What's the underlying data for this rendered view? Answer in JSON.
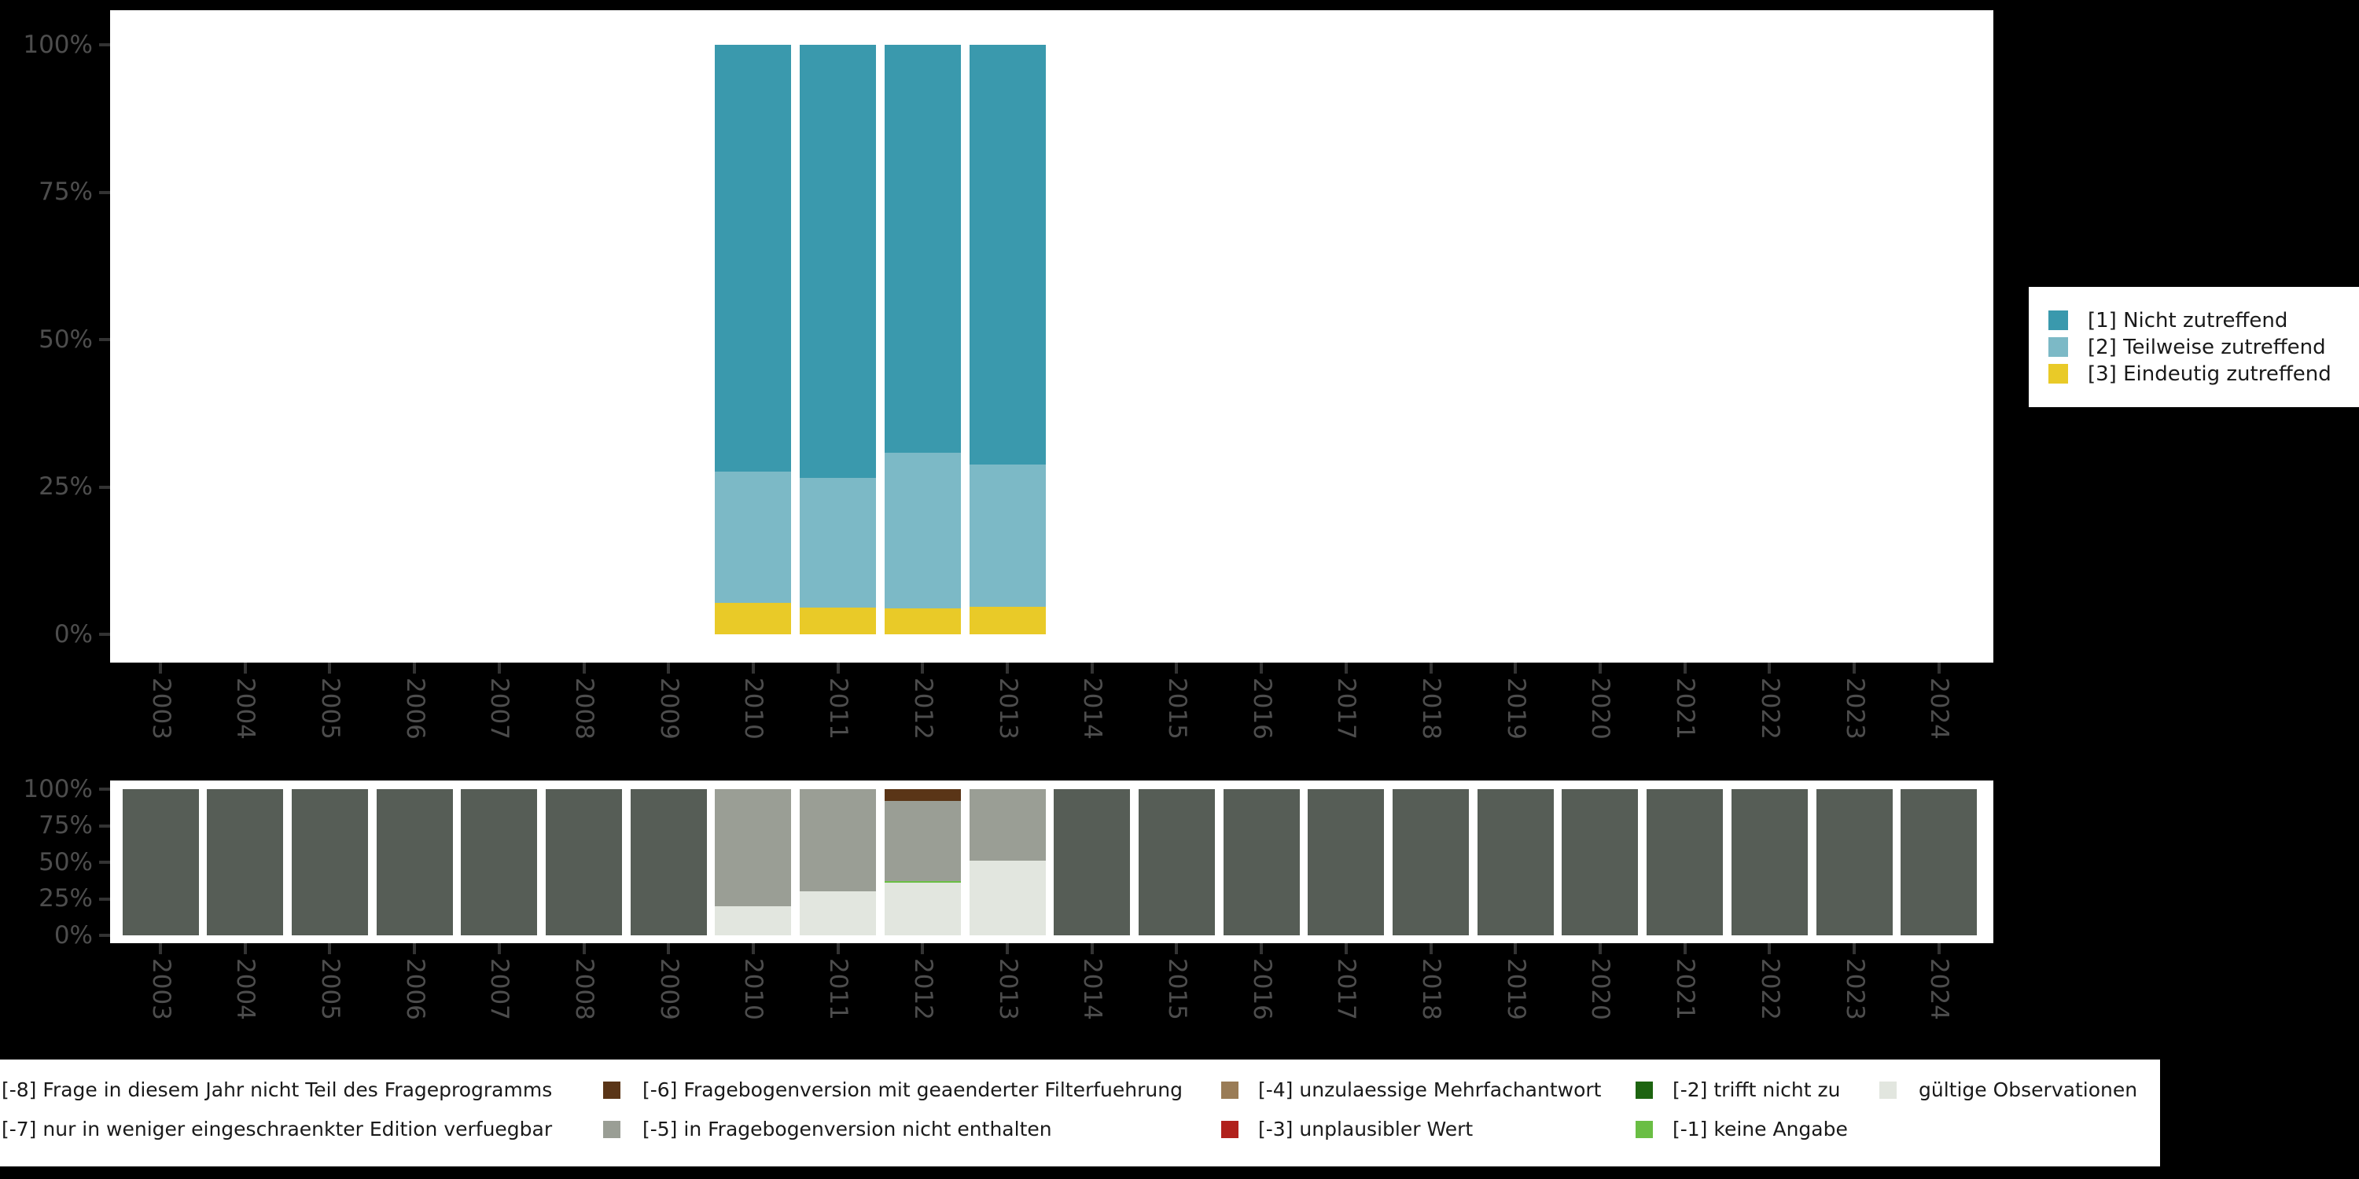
{
  "figure": {
    "background": "#000000",
    "plot_background": "#ffffff",
    "axis_tick_color": "#333333",
    "axis_label_color": "#4d4d4d",
    "legend_text_color": "#1a1a1a"
  },
  "years": [
    "2003",
    "2004",
    "2005",
    "2006",
    "2007",
    "2008",
    "2009",
    "2010",
    "2011",
    "2012",
    "2013",
    "2014",
    "2015",
    "2016",
    "2017",
    "2018",
    "2019",
    "2020",
    "2021",
    "2022",
    "2023",
    "2024"
  ],
  "palette": {
    "[1]": "#3a99ad",
    "[2]": "#7cb9c6",
    "[3]": "#e9ca28",
    "[-8]": "#565d56",
    "[-7]": "#868e86",
    "[-6]": "#5a3517",
    "[-5]": "#9a9e95",
    "[-4]": "#9a7c56",
    "[-3]": "#b1211c",
    "[-2]": "#1d6410",
    "[-1]": "#6abe44",
    "valid": "#e2e6df"
  },
  "chart_data": [
    {
      "id": "answers",
      "type": "bar",
      "stacked": true,
      "ylim": [
        0,
        100
      ],
      "yticks": [
        "100%",
        "75%",
        "50%",
        "25%",
        "0%"
      ],
      "grid": false,
      "legend_position": "right",
      "legend": [
        {
          "code": "[1]",
          "label": "[1] Nicht zutreffend"
        },
        {
          "code": "[2]",
          "label": "[2] Teilweise zutreffend"
        },
        {
          "code": "[3]",
          "label": "[3] Eindeutig zutreffend"
        }
      ],
      "bars": [
        {
          "year": "2010",
          "segments": [
            {
              "code": "[3]",
              "value": 5.4
            },
            {
              "code": "[2]",
              "value": 22.2
            },
            {
              "code": "[1]",
              "value": 72.4
            }
          ]
        },
        {
          "year": "2011",
          "segments": [
            {
              "code": "[3]",
              "value": 4.6
            },
            {
              "code": "[2]",
              "value": 21.9
            },
            {
              "code": "[1]",
              "value": 73.5
            }
          ]
        },
        {
          "year": "2012",
          "segments": [
            {
              "code": "[3]",
              "value": 4.4
            },
            {
              "code": "[2]",
              "value": 26.4
            },
            {
              "code": "[1]",
              "value": 69.2
            }
          ]
        },
        {
          "year": "2013",
          "segments": [
            {
              "code": "[3]",
              "value": 4.7
            },
            {
              "code": "[2]",
              "value": 24.1
            },
            {
              "code": "[1]",
              "value": 71.2
            }
          ]
        }
      ]
    },
    {
      "id": "missings",
      "type": "bar",
      "stacked": true,
      "ylim": [
        0,
        100
      ],
      "yticks": [
        "100%",
        "75%",
        "50%",
        "25%",
        "0%"
      ],
      "grid": false,
      "legend_position": "bottom",
      "legend": [
        {
          "code": "[-8]",
          "label": "[-8] Frage in diesem Jahr nicht Teil des Frageprogramms",
          "row": 0,
          "col": 0
        },
        {
          "code": "[-7]",
          "label": "[-7] nur in weniger eingeschraenkter Edition verfuegbar",
          "row": 1,
          "col": 0
        },
        {
          "code": "[-6]",
          "label": "[-6] Fragebogenversion mit geaenderter Filterfuehrung",
          "row": 0,
          "col": 1
        },
        {
          "code": "[-5]",
          "label": "[-5] in Fragebogenversion nicht enthalten",
          "row": 1,
          "col": 1
        },
        {
          "code": "[-4]",
          "label": "[-4] unzulaessige Mehrfachantwort",
          "row": 0,
          "col": 2
        },
        {
          "code": "[-3]",
          "label": "[-3] unplausibler Wert",
          "row": 1,
          "col": 2
        },
        {
          "code": "[-2]",
          "label": "[-2] trifft nicht zu",
          "row": 0,
          "col": 3
        },
        {
          "code": "[-1]",
          "label": "[-1] keine Angabe",
          "row": 1,
          "col": 3
        },
        {
          "code": "valid",
          "label": "gültige Observationen",
          "row": 0,
          "col": 4
        }
      ],
      "bars": [
        {
          "year": "2003",
          "segments": [
            {
              "code": "[-8]",
              "value": 100
            }
          ]
        },
        {
          "year": "2004",
          "segments": [
            {
              "code": "[-8]",
              "value": 100
            }
          ]
        },
        {
          "year": "2005",
          "segments": [
            {
              "code": "[-8]",
              "value": 100
            }
          ]
        },
        {
          "year": "2006",
          "segments": [
            {
              "code": "[-8]",
              "value": 100
            }
          ]
        },
        {
          "year": "2007",
          "segments": [
            {
              "code": "[-8]",
              "value": 100
            }
          ]
        },
        {
          "year": "2008",
          "segments": [
            {
              "code": "[-8]",
              "value": 100
            }
          ]
        },
        {
          "year": "2009",
          "segments": [
            {
              "code": "[-8]",
              "value": 100
            }
          ]
        },
        {
          "year": "2010",
          "segments": [
            {
              "code": "valid",
              "value": 20
            },
            {
              "code": "[-5]",
              "value": 80
            }
          ]
        },
        {
          "year": "2011",
          "segments": [
            {
              "code": "valid",
              "value": 30
            },
            {
              "code": "[-5]",
              "value": 70
            }
          ]
        },
        {
          "year": "2012",
          "segments": [
            {
              "code": "valid",
              "value": 35.8
            },
            {
              "code": "[-1]",
              "value": 1.3
            },
            {
              "code": "[-5]",
              "value": 54.6
            },
            {
              "code": "[-6]",
              "value": 8.3
            }
          ]
        },
        {
          "year": "2013",
          "segments": [
            {
              "code": "valid",
              "value": 51
            },
            {
              "code": "[-5]",
              "value": 49
            }
          ]
        },
        {
          "year": "2014",
          "segments": [
            {
              "code": "[-8]",
              "value": 100
            }
          ]
        },
        {
          "year": "2015",
          "segments": [
            {
              "code": "[-8]",
              "value": 100
            }
          ]
        },
        {
          "year": "2016",
          "segments": [
            {
              "code": "[-8]",
              "value": 100
            }
          ]
        },
        {
          "year": "2017",
          "segments": [
            {
              "code": "[-8]",
              "value": 100
            }
          ]
        },
        {
          "year": "2018",
          "segments": [
            {
              "code": "[-8]",
              "value": 100
            }
          ]
        },
        {
          "year": "2019",
          "segments": [
            {
              "code": "[-8]",
              "value": 100
            }
          ]
        },
        {
          "year": "2020",
          "segments": [
            {
              "code": "[-8]",
              "value": 100
            }
          ]
        },
        {
          "year": "2021",
          "segments": [
            {
              "code": "[-8]",
              "value": 100
            }
          ]
        },
        {
          "year": "2022",
          "segments": [
            {
              "code": "[-8]",
              "value": 100
            }
          ]
        },
        {
          "year": "2023",
          "segments": [
            {
              "code": "[-8]",
              "value": 100
            }
          ]
        },
        {
          "year": "2024",
          "segments": [
            {
              "code": "[-8]",
              "value": 100
            }
          ]
        }
      ]
    }
  ]
}
